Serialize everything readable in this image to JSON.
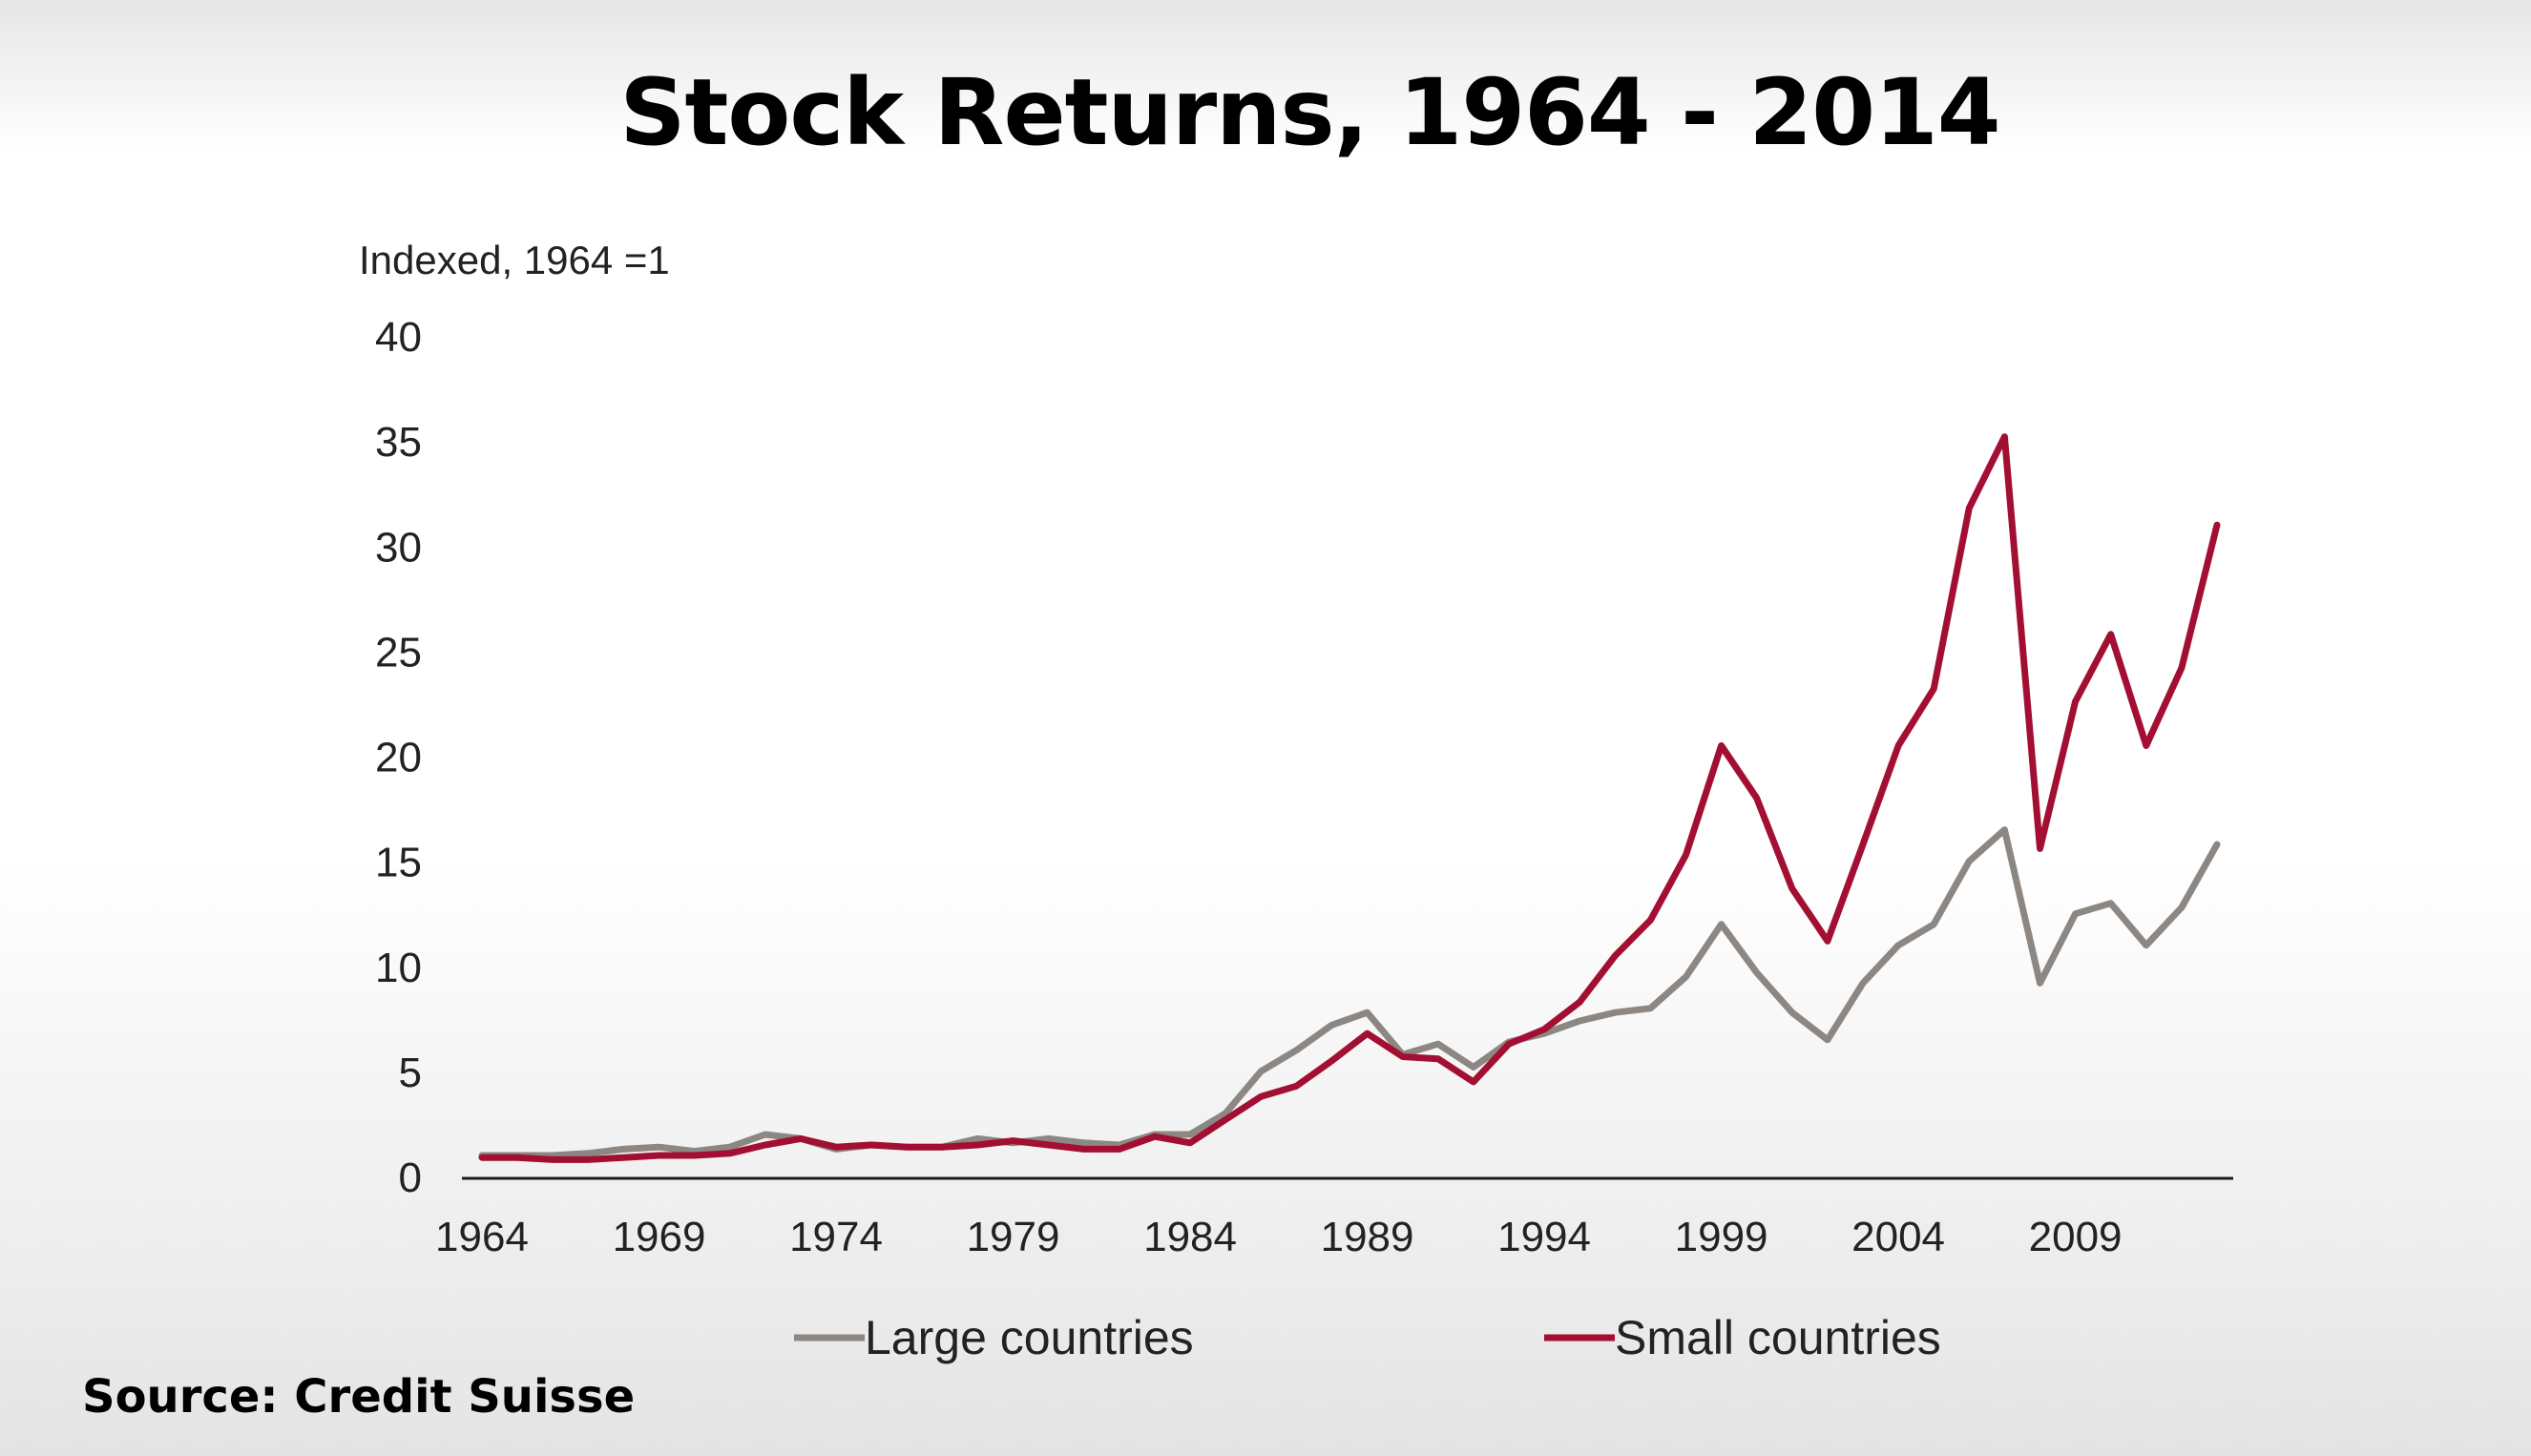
{
  "chart_data": {
    "type": "line",
    "title": "Stock Returns, 1964 - 2014",
    "ylabel": "Indexed, 1964 =1",
    "xlabel": "",
    "source": "Source: Credit Suisse",
    "xlim": [
      1964,
      2013
    ],
    "ylim": [
      0,
      40
    ],
    "x_ticks": [
      1964,
      1969,
      1974,
      1979,
      1984,
      1989,
      1994,
      1999,
      2004,
      2009
    ],
    "y_ticks": [
      0,
      5,
      10,
      15,
      20,
      25,
      30,
      35,
      40
    ],
    "grid": false,
    "legend_position": "bottom",
    "x": [
      1964,
      1965,
      1966,
      1967,
      1968,
      1969,
      1970,
      1971,
      1972,
      1973,
      1974,
      1975,
      1976,
      1977,
      1978,
      1979,
      1980,
      1981,
      1982,
      1983,
      1984,
      1985,
      1986,
      1987,
      1988,
      1989,
      1990,
      1991,
      1992,
      1993,
      1994,
      1995,
      1996,
      1997,
      1998,
      1999,
      2000,
      2001,
      2002,
      2003,
      2004,
      2005,
      2006,
      2007,
      2008,
      2009,
      2010,
      2011,
      2012,
      2013
    ],
    "series": [
      {
        "name": "Large countries",
        "color": "#8c8782",
        "values": [
          1.0,
          1.0,
          1.0,
          1.1,
          1.3,
          1.4,
          1.2,
          1.4,
          2.0,
          1.8,
          1.3,
          1.5,
          1.4,
          1.4,
          1.8,
          1.6,
          1.8,
          1.6,
          1.5,
          2.0,
          2.0,
          3.0,
          5.0,
          6.0,
          7.2,
          7.8,
          5.8,
          6.3,
          5.2,
          6.4,
          6.8,
          7.4,
          7.8,
          8.0,
          9.5,
          12.0,
          9.7,
          7.8,
          6.5,
          9.2,
          11.0,
          12.0,
          15.0,
          16.5,
          9.2,
          12.5,
          13.0,
          11.0,
          12.8,
          15.8
        ]
      },
      {
        "name": "Small countries",
        "color": "#a30f32",
        "values": [
          0.9,
          0.9,
          0.8,
          0.8,
          0.9,
          1.0,
          1.0,
          1.1,
          1.5,
          1.8,
          1.4,
          1.5,
          1.4,
          1.4,
          1.5,
          1.7,
          1.5,
          1.3,
          1.3,
          1.9,
          1.6,
          2.7,
          3.8,
          4.3,
          5.5,
          6.8,
          5.7,
          5.6,
          4.5,
          6.3,
          7.0,
          8.3,
          10.5,
          12.2,
          15.3,
          20.5,
          18.0,
          13.7,
          11.2,
          15.8,
          20.5,
          23.2,
          31.8,
          35.2,
          15.6,
          22.6,
          25.8,
          20.5,
          24.2,
          31.0
        ]
      }
    ]
  }
}
